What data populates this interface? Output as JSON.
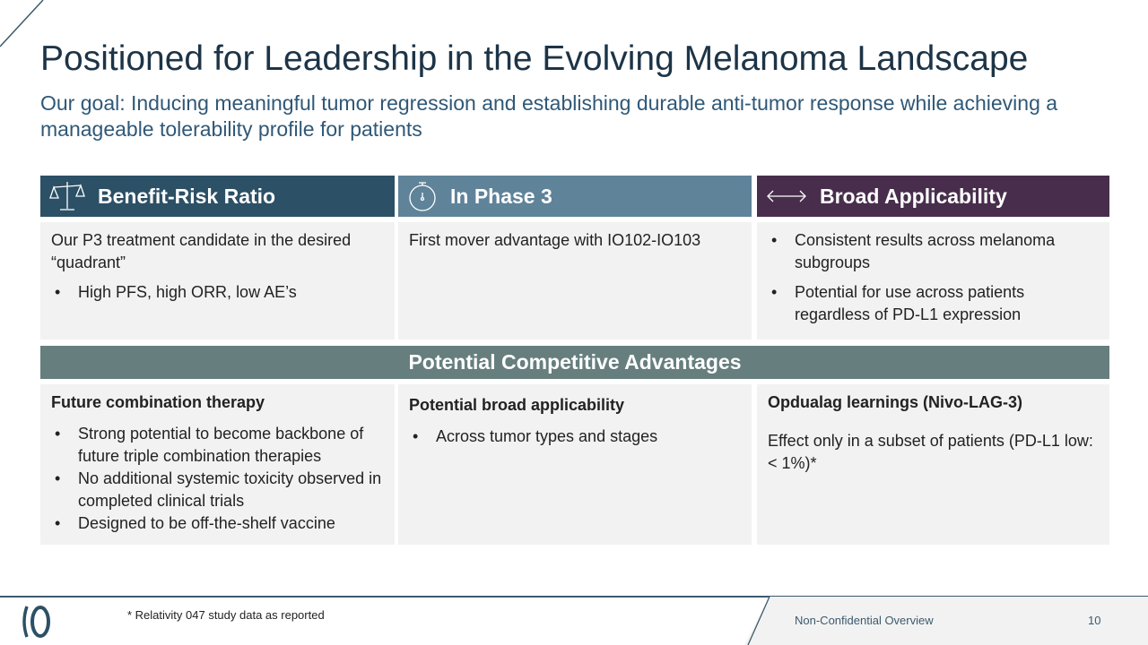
{
  "title": "Positioned for Leadership in the Evolving Melanoma Landscape",
  "subtitle": "Our goal: Inducing meaningful tumor regression and establishing durable anti-tumor response while achieving a manageable tolerability profile for patients",
  "columns": [
    {
      "header": "Benefit-Risk Ratio",
      "icon": "scale-icon",
      "color": "#2c5066",
      "text": "Our P3 treatment candidate in the desired “quadrant”",
      "bullets": [
        "High PFS, high ORR, low AE’s"
      ]
    },
    {
      "header": "In Phase 3",
      "icon": "stopwatch-icon",
      "color": "#5f8399",
      "text": "First mover advantage with IO102-IO103",
      "bullets": []
    },
    {
      "header": "Broad Applicability",
      "icon": "double-arrow-icon",
      "color": "#482e4c",
      "bullets": [
        "Consistent results across melanoma subgroups",
        "Potential for use across patients regardless of PD-L1 expression"
      ]
    }
  ],
  "advantages_title": "Potential Competitive Advantages",
  "advantages": [
    {
      "heading": "Future combination therapy",
      "bullets": [
        "Strong potential to become backbone of future triple combination therapies",
        "No additional systemic toxicity observed in completed clinical trials",
        "Designed to be off-the-shelf vaccine"
      ]
    },
    {
      "heading": "Potential broad applicability",
      "bullets": [
        "Across tumor types and stages"
      ]
    },
    {
      "heading": "Opdualag learnings (Nivo-LAG-3)",
      "text": "Effect only in a subset of patients (PD-L1 low: < 1%)*"
    }
  ],
  "footer": {
    "logo": "IO",
    "footnote": "* Relativity 047 study data as reported",
    "label": "Non-Confidential Overview",
    "page": "10"
  }
}
